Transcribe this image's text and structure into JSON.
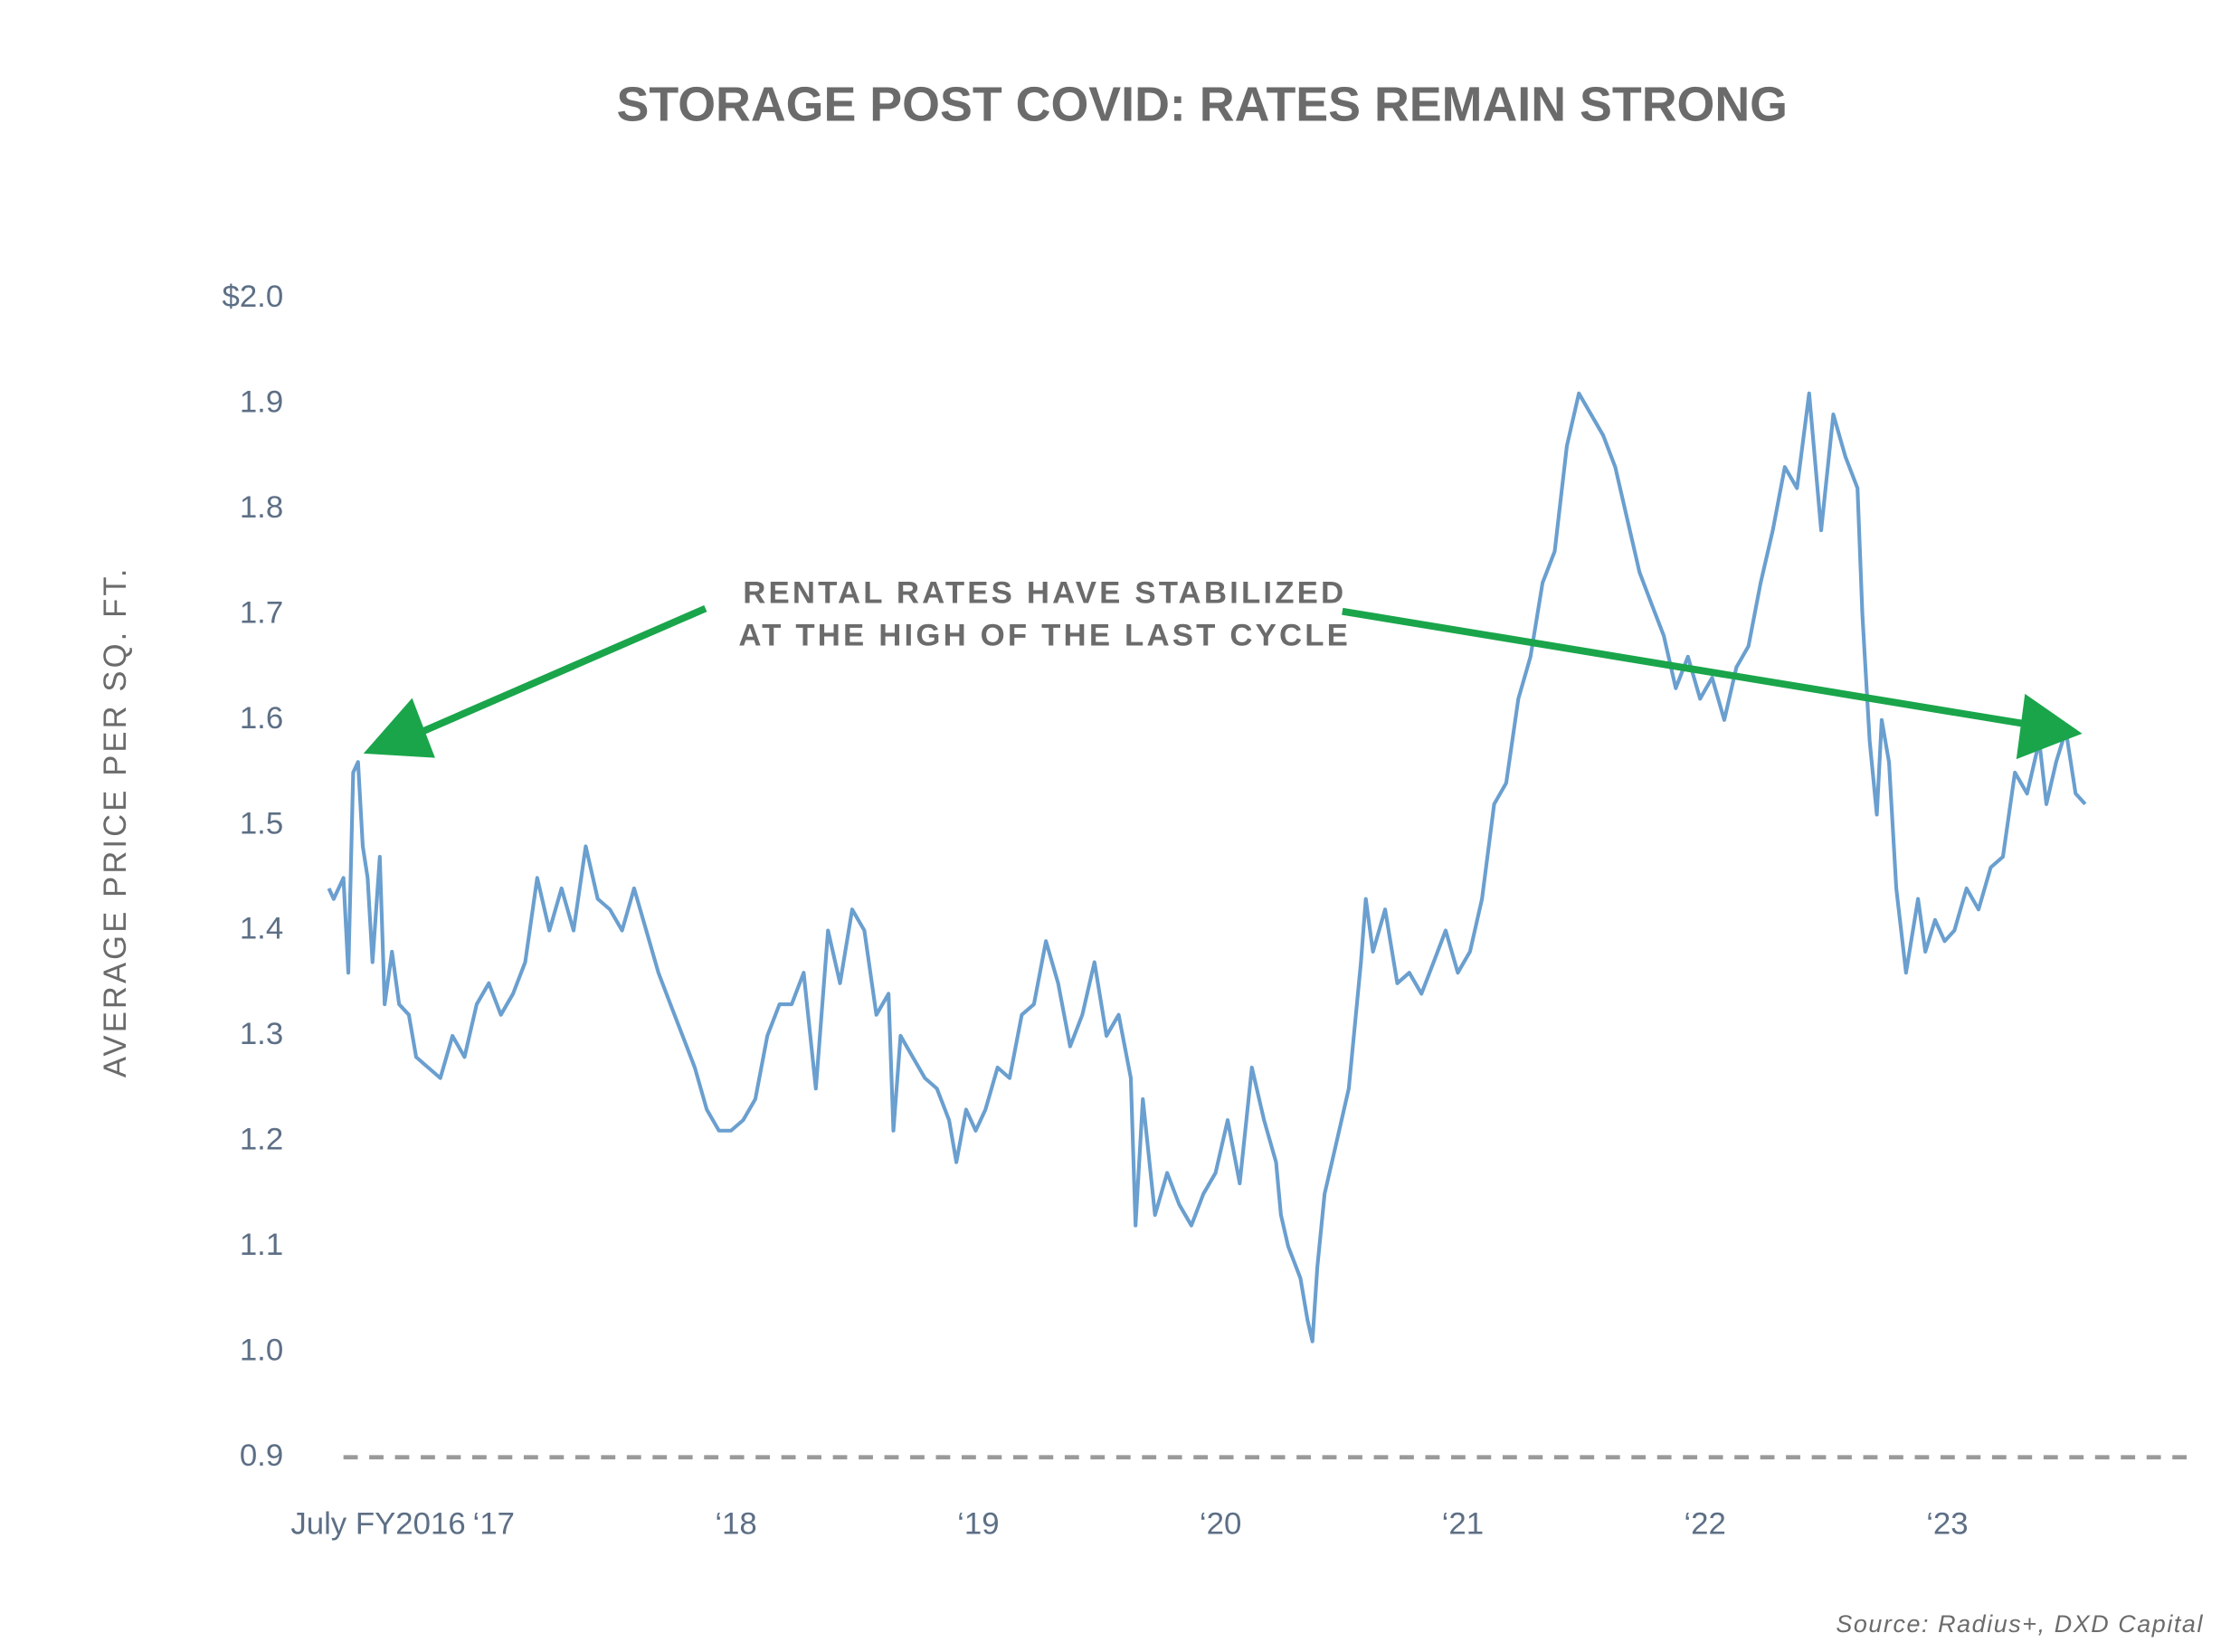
{
  "chart_data": {
    "type": "line",
    "title": "STORAGE POST COVID: RATES REMAIN STRONG",
    "y_label": "AVERAGE PRICE PER SQ. FT.",
    "annotation": [
      "RENTAL RATES HAVE STABILIZED",
      "AT THE HIGH OF THE LAST CYCLE"
    ],
    "source": "Source: Radius+, DXD Capital",
    "color": "#6a9fcf",
    "xlim": [
      2016.35,
      2024.0
    ],
    "xticks": [
      {
        "value": 2016.5,
        "label": "July FY2016"
      },
      {
        "value": 2017,
        "label": "‘17"
      },
      {
        "value": 2018,
        "label": "‘18"
      },
      {
        "value": 2019,
        "label": "‘19"
      },
      {
        "value": 2020,
        "label": "‘20"
      },
      {
        "value": 2021,
        "label": "‘21"
      },
      {
        "value": 2022,
        "label": "‘22"
      },
      {
        "value": 2023,
        "label": "‘23"
      }
    ],
    "ylim": [
      0.9,
      2.0
    ],
    "yticks": [
      0.9,
      {
        "value": 1.0,
        "label": "1.0"
      },
      1.1,
      1.2,
      1.3,
      1.4,
      1.5,
      1.6,
      1.7,
      1.8,
      1.9,
      {
        "value": 2.0,
        "label": "$2.0"
      }
    ],
    "x": [
      2016.29,
      2016.31,
      2016.33,
      2016.35,
      2016.37,
      2016.39,
      2016.41,
      2016.43,
      2016.45,
      2016.47,
      2016.5,
      2016.52,
      2016.55,
      2016.58,
      2016.62,
      2016.65,
      2016.7,
      2016.75,
      2016.8,
      2016.85,
      2016.9,
      2016.95,
      2017.0,
      2017.05,
      2017.1,
      2017.15,
      2017.2,
      2017.25,
      2017.3,
      2017.35,
      2017.4,
      2017.45,
      2017.5,
      2017.55,
      2017.6,
      2017.65,
      2017.7,
      2017.75,
      2017.8,
      2017.85,
      2017.9,
      2017.95,
      2018.0,
      2018.05,
      2018.1,
      2018.15,
      2018.2,
      2018.25,
      2018.3,
      2018.35,
      2018.4,
      2018.45,
      2018.5,
      2018.55,
      2018.6,
      2018.62,
      2018.65,
      2018.7,
      2018.75,
      2018.8,
      2018.85,
      2018.88,
      2018.92,
      2018.96,
      2019.0,
      2019.05,
      2019.1,
      2019.15,
      2019.2,
      2019.25,
      2019.3,
      2019.35,
      2019.4,
      2019.45,
      2019.5,
      2019.55,
      2019.6,
      2019.62,
      2019.65,
      2019.7,
      2019.75,
      2019.8,
      2019.85,
      2019.9,
      2019.95,
      2020.0,
      2020.05,
      2020.1,
      2020.15,
      2020.2,
      2020.22,
      2020.25,
      2020.3,
      2020.33,
      2020.35,
      2020.37,
      2020.4,
      2020.45,
      2020.5,
      2020.55,
      2020.57,
      2020.6,
      2020.65,
      2020.7,
      2020.75,
      2020.8,
      2020.85,
      2020.9,
      2020.95,
      2021.0,
      2021.05,
      2021.1,
      2021.15,
      2021.2,
      2021.25,
      2021.3,
      2021.35,
      2021.4,
      2021.45,
      2021.5,
      2021.55,
      2021.6,
      2021.65,
      2021.7,
      2021.75,
      2021.8,
      2021.85,
      2021.9,
      2021.95,
      2022.0,
      2022.05,
      2022.1,
      2022.15,
      2022.2,
      2022.25,
      2022.3,
      2022.35,
      2022.4,
      2022.45,
      2022.5,
      2022.55,
      2022.6,
      2022.62,
      2022.65,
      2022.68,
      2022.7,
      2022.73,
      2022.76,
      2022.8,
      2022.85,
      2022.88,
      2022.92,
      2022.96,
      2023.0,
      2023.05,
      2023.1,
      2023.15,
      2023.2,
      2023.25,
      2023.3,
      2023.35,
      2023.38,
      2023.42,
      2023.46,
      2023.5,
      2023.54
    ],
    "values": [
      1.44,
      1.43,
      1.44,
      1.45,
      1.36,
      1.55,
      1.56,
      1.48,
      1.45,
      1.37,
      1.47,
      1.33,
      1.38,
      1.33,
      1.32,
      1.28,
      1.27,
      1.26,
      1.3,
      1.28,
      1.33,
      1.35,
      1.32,
      1.34,
      1.37,
      1.45,
      1.4,
      1.44,
      1.4,
      1.48,
      1.43,
      1.42,
      1.4,
      1.44,
      1.4,
      1.36,
      1.33,
      1.3,
      1.27,
      1.23,
      1.21,
      1.21,
      1.22,
      1.24,
      1.3,
      1.33,
      1.33,
      1.36,
      1.25,
      1.4,
      1.35,
      1.42,
      1.4,
      1.32,
      1.34,
      1.21,
      1.3,
      1.28,
      1.26,
      1.25,
      1.22,
      1.18,
      1.23,
      1.21,
      1.23,
      1.27,
      1.26,
      1.32,
      1.33,
      1.39,
      1.35,
      1.29,
      1.32,
      1.37,
      1.3,
      1.32,
      1.26,
      1.12,
      1.24,
      1.13,
      1.17,
      1.14,
      1.12,
      1.15,
      1.17,
      1.22,
      1.16,
      1.27,
      1.22,
      1.18,
      1.13,
      1.1,
      1.07,
      1.03,
      1.01,
      1.08,
      1.15,
      1.2,
      1.25,
      1.37,
      1.43,
      1.38,
      1.42,
      1.35,
      1.36,
      1.34,
      1.37,
      1.4,
      1.36,
      1.38,
      1.43,
      1.52,
      1.54,
      1.62,
      1.66,
      1.73,
      1.76,
      1.86,
      1.91,
      1.89,
      1.87,
      1.84,
      1.79,
      1.74,
      1.71,
      1.68,
      1.63,
      1.66,
      1.62,
      1.64,
      1.6,
      1.65,
      1.67,
      1.73,
      1.78,
      1.84,
      1.82,
      1.91,
      1.78,
      1.89,
      1.85,
      1.82,
      1.7,
      1.58,
      1.51,
      1.6,
      1.56,
      1.44,
      1.36,
      1.43,
      1.38,
      1.41,
      1.39,
      1.4,
      1.44,
      1.42,
      1.46,
      1.47,
      1.55,
      1.53,
      1.58,
      1.52,
      1.56,
      1.59,
      1.53,
      1.52
    ]
  }
}
